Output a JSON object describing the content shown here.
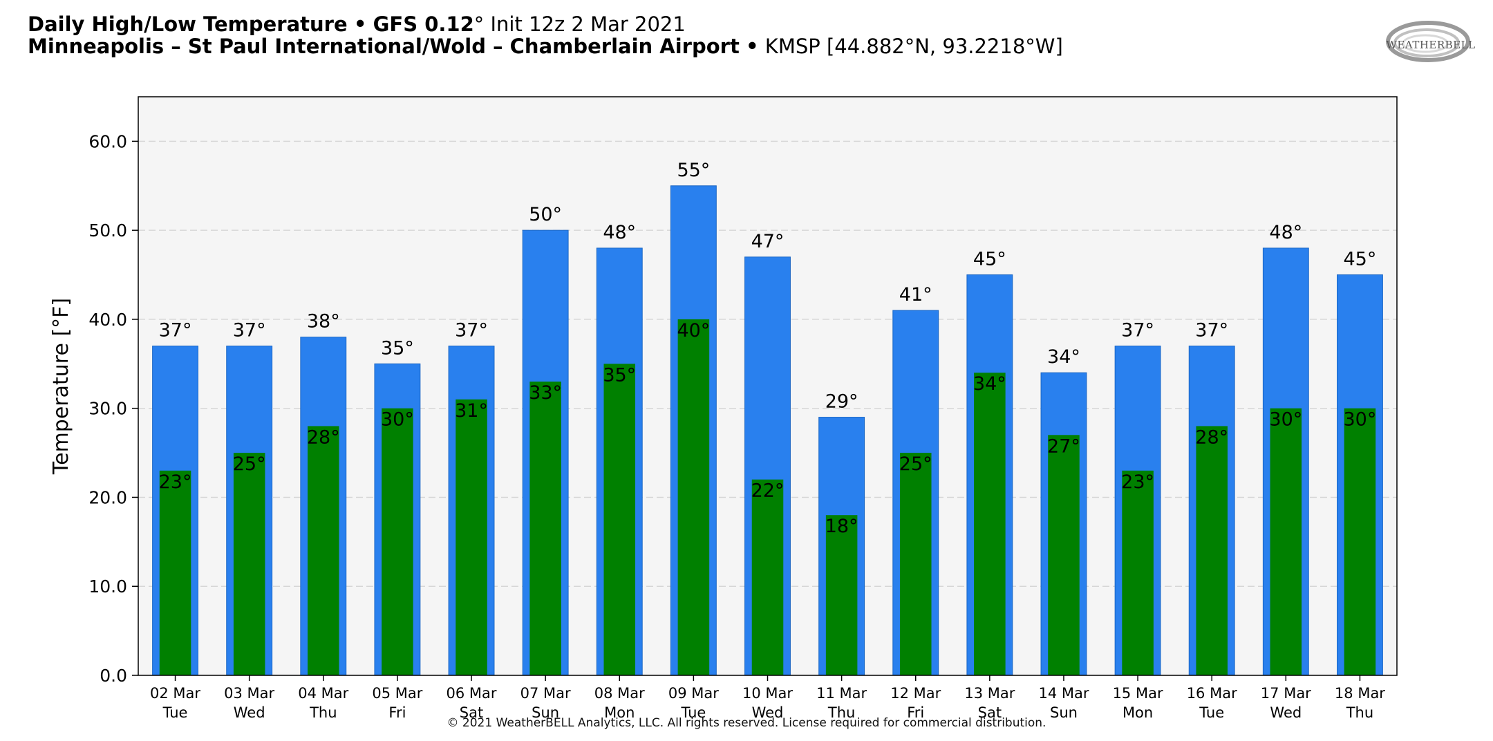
{
  "header": {
    "title_main": "Daily High/Low Temperature",
    "bullet": "•",
    "model": "GFS 0.12",
    "degree_mark": "°",
    "init": "Init 12z 2 Mar 2021",
    "station_name": "Minneapolis – St Paul International/Wold – Chamberlain Airport",
    "station_code": "KMSP [44.882°N, 93.2218°W]"
  },
  "logo": {
    "text": "WEATHERBELL",
    "icon": "weatherbell-swirl-logo"
  },
  "footer": {
    "copyright": "© 2021 WeatherBELL Analytics, LLC. All rights reserved. License required for commercial distribution."
  },
  "colors": {
    "high": "#2980ee",
    "low": "#008000",
    "plot_background": "#f5f5f5"
  },
  "chart_data": {
    "type": "bar",
    "ylabel": "Temperature [°F]",
    "ylim": [
      0,
      65
    ],
    "yticks": [
      0,
      10,
      20,
      30,
      40,
      50,
      60
    ],
    "ytick_labels": [
      "0.0",
      "10.0",
      "20.0",
      "30.0",
      "40.0",
      "50.0",
      "60.0"
    ],
    "grid": true,
    "label_suffix": "°",
    "categories": [
      {
        "date": "02 Mar",
        "day": "Tue"
      },
      {
        "date": "03 Mar",
        "day": "Wed"
      },
      {
        "date": "04 Mar",
        "day": "Thu"
      },
      {
        "date": "05 Mar",
        "day": "Fri"
      },
      {
        "date": "06 Mar",
        "day": "Sat"
      },
      {
        "date": "07 Mar",
        "day": "Sun"
      },
      {
        "date": "08 Mar",
        "day": "Mon"
      },
      {
        "date": "09 Mar",
        "day": "Tue"
      },
      {
        "date": "10 Mar",
        "day": "Wed"
      },
      {
        "date": "11 Mar",
        "day": "Thu"
      },
      {
        "date": "12 Mar",
        "day": "Fri"
      },
      {
        "date": "13 Mar",
        "day": "Sat"
      },
      {
        "date": "14 Mar",
        "day": "Sun"
      },
      {
        "date": "15 Mar",
        "day": "Mon"
      },
      {
        "date": "16 Mar",
        "day": "Tue"
      },
      {
        "date": "17 Mar",
        "day": "Wed"
      },
      {
        "date": "18 Mar",
        "day": "Thu"
      }
    ],
    "series": [
      {
        "key": "high",
        "values": [
          37,
          37,
          38,
          35,
          37,
          50,
          48,
          55,
          47,
          29,
          41,
          45,
          34,
          37,
          37,
          48,
          45
        ]
      },
      {
        "key": "low",
        "values": [
          23,
          25,
          28,
          30,
          31,
          33,
          35,
          40,
          22,
          18,
          25,
          34,
          27,
          23,
          28,
          30,
          30
        ]
      }
    ]
  }
}
